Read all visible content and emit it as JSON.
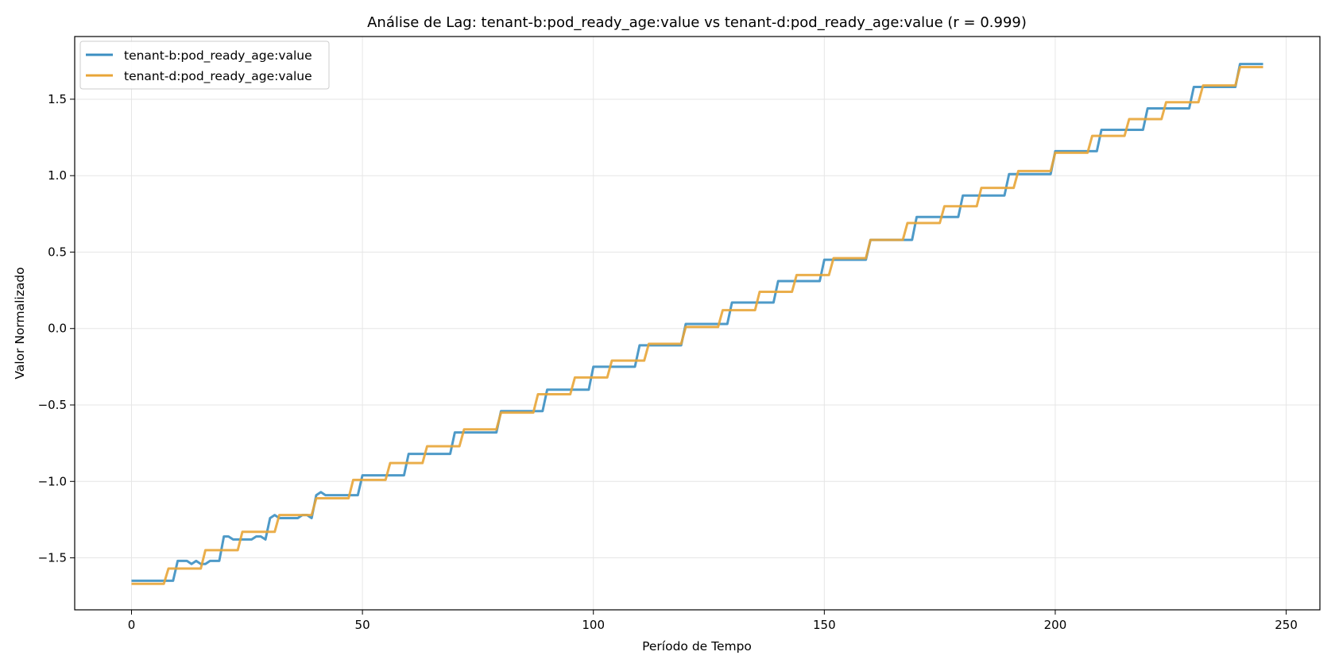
{
  "chart_data": {
    "type": "line",
    "title": "Análise de Lag: tenant-b:pod_ready_age:value vs tenant-d:pod_ready_age:value (r = 0.999)",
    "xlabel": "Período de Tempo",
    "ylabel": "Valor Normalizado",
    "xlim": [
      -12.3,
      257.3
    ],
    "ylim": [
      -1.84,
      1.91
    ],
    "x_ticks": [
      0,
      50,
      100,
      150,
      200,
      250
    ],
    "x_tick_labels": [
      "0",
      "50",
      "100",
      "150",
      "200",
      "250"
    ],
    "y_ticks": [
      -1.5,
      -1.0,
      -0.5,
      0.0,
      0.5,
      1.0,
      1.5
    ],
    "y_tick_labels": [
      "−1.5",
      "−1.0",
      "−0.5",
      "0.0",
      "0.5",
      "1.0",
      "1.5"
    ],
    "grid": true,
    "legend": "top-left",
    "series": [
      {
        "name": "tenant-b:pod_ready_age:value",
        "color": "#3b8fc2",
        "points": [
          [
            0,
            -1.65
          ],
          [
            9,
            -1.65
          ],
          [
            10,
            -1.52
          ],
          [
            12,
            -1.52
          ],
          [
            13,
            -1.54
          ],
          [
            14,
            -1.52
          ],
          [
            15,
            -1.54
          ],
          [
            16,
            -1.54
          ],
          [
            17,
            -1.52
          ],
          [
            19,
            -1.52
          ],
          [
            20,
            -1.36
          ],
          [
            21,
            -1.36
          ],
          [
            22,
            -1.38
          ],
          [
            26,
            -1.38
          ],
          [
            27,
            -1.36
          ],
          [
            28,
            -1.36
          ],
          [
            29,
            -1.38
          ],
          [
            30,
            -1.24
          ],
          [
            31,
            -1.22
          ],
          [
            32,
            -1.24
          ],
          [
            36,
            -1.24
          ],
          [
            37,
            -1.22
          ],
          [
            38,
            -1.22
          ],
          [
            39,
            -1.24
          ],
          [
            40,
            -1.09
          ],
          [
            41,
            -1.07
          ],
          [
            42,
            -1.09
          ],
          [
            49,
            -1.09
          ],
          [
            50,
            -0.96
          ],
          [
            59,
            -0.96
          ],
          [
            60,
            -0.82
          ],
          [
            69,
            -0.82
          ],
          [
            70,
            -0.68
          ],
          [
            79,
            -0.68
          ],
          [
            80,
            -0.54
          ],
          [
            89,
            -0.54
          ],
          [
            90,
            -0.4
          ],
          [
            99,
            -0.4
          ],
          [
            100,
            -0.25
          ],
          [
            109,
            -0.25
          ],
          [
            110,
            -0.11
          ],
          [
            119,
            -0.11
          ],
          [
            120,
            0.03
          ],
          [
            129,
            0.03
          ],
          [
            130,
            0.17
          ],
          [
            139,
            0.17
          ],
          [
            140,
            0.31
          ],
          [
            149,
            0.31
          ],
          [
            150,
            0.45
          ],
          [
            159,
            0.45
          ],
          [
            160,
            0.58
          ],
          [
            169,
            0.58
          ],
          [
            170,
            0.73
          ],
          [
            179,
            0.73
          ],
          [
            180,
            0.87
          ],
          [
            189,
            0.87
          ],
          [
            190,
            1.01
          ],
          [
            199,
            1.01
          ],
          [
            200,
            1.16
          ],
          [
            209,
            1.16
          ],
          [
            210,
            1.3
          ],
          [
            219,
            1.3
          ],
          [
            220,
            1.44
          ],
          [
            229,
            1.44
          ],
          [
            230,
            1.58
          ],
          [
            239,
            1.58
          ],
          [
            240,
            1.73
          ],
          [
            245,
            1.73
          ]
        ]
      },
      {
        "name": "tenant-d:pod_ready_age:value",
        "color": "#e8a537",
        "points": [
          [
            0,
            -1.67
          ],
          [
            7,
            -1.67
          ],
          [
            8,
            -1.57
          ],
          [
            15,
            -1.57
          ],
          [
            16,
            -1.45
          ],
          [
            23,
            -1.45
          ],
          [
            24,
            -1.33
          ],
          [
            31,
            -1.33
          ],
          [
            32,
            -1.22
          ],
          [
            39,
            -1.22
          ],
          [
            40,
            -1.11
          ],
          [
            47,
            -1.11
          ],
          [
            48,
            -0.99
          ],
          [
            55,
            -0.99
          ],
          [
            56,
            -0.88
          ],
          [
            63,
            -0.88
          ],
          [
            64,
            -0.77
          ],
          [
            71,
            -0.77
          ],
          [
            72,
            -0.66
          ],
          [
            79,
            -0.66
          ],
          [
            80,
            -0.55
          ],
          [
            87,
            -0.55
          ],
          [
            88,
            -0.43
          ],
          [
            95,
            -0.43
          ],
          [
            96,
            -0.32
          ],
          [
            103,
            -0.32
          ],
          [
            104,
            -0.21
          ],
          [
            111,
            -0.21
          ],
          [
            112,
            -0.1
          ],
          [
            119,
            -0.1
          ],
          [
            120,
            0.01
          ],
          [
            127,
            0.01
          ],
          [
            128,
            0.12
          ],
          [
            135,
            0.12
          ],
          [
            136,
            0.24
          ],
          [
            143,
            0.24
          ],
          [
            144,
            0.35
          ],
          [
            151,
            0.35
          ],
          [
            152,
            0.46
          ],
          [
            159,
            0.46
          ],
          [
            160,
            0.58
          ],
          [
            167,
            0.58
          ],
          [
            168,
            0.69
          ],
          [
            175,
            0.69
          ],
          [
            176,
            0.8
          ],
          [
            183,
            0.8
          ],
          [
            184,
            0.92
          ],
          [
            191,
            0.92
          ],
          [
            192,
            1.03
          ],
          [
            199,
            1.03
          ],
          [
            200,
            1.15
          ],
          [
            207,
            1.15
          ],
          [
            208,
            1.26
          ],
          [
            215,
            1.26
          ],
          [
            216,
            1.37
          ],
          [
            223,
            1.37
          ],
          [
            224,
            1.48
          ],
          [
            231,
            1.48
          ],
          [
            232,
            1.59
          ],
          [
            239,
            1.59
          ],
          [
            240,
            1.71
          ],
          [
            245,
            1.71
          ]
        ]
      }
    ]
  }
}
